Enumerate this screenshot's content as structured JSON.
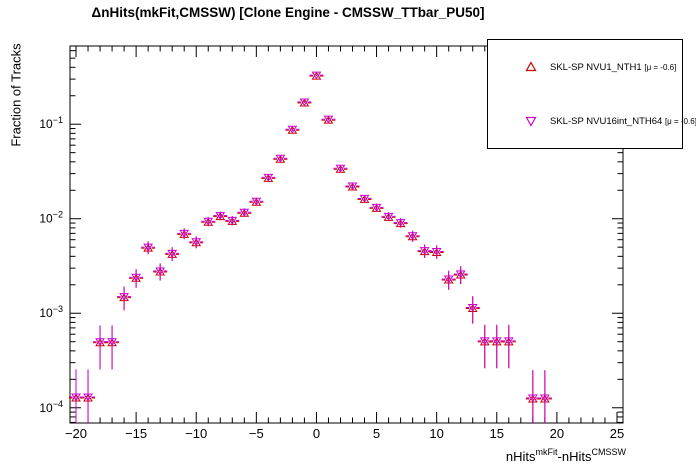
{
  "window": {
    "background": "#ffffff"
  },
  "chart_data": {
    "type": "scatter",
    "title": "ΔnHits(mkFit,CMSSW) [Clone Engine - CMSSW_TTbar_PU50]",
    "ylabel": "Fraction of Tracks",
    "xlabel_parts": [
      {
        "text": "nHits",
        "sup": false
      },
      {
        "text": "mkFit",
        "sup": true
      },
      {
        "text": "-nHits",
        "sup": false
      },
      {
        "text": "CMSSW",
        "sup": true
      }
    ],
    "yscale": "log",
    "grid": false,
    "xlim": [
      -20.5,
      25.5
    ],
    "ylim": [
      6.9e-05,
      0.672
    ],
    "x_major_ticks": [
      -20,
      -15,
      -10,
      -5,
      0,
      5,
      10,
      15,
      20,
      25
    ],
    "x_tick_labels": [
      "−20",
      "−15",
      "−10",
      "−5",
      "0",
      "5",
      "10",
      "15",
      "20",
      "25"
    ],
    "x_minor_tick_step": 1,
    "y_major_ticks": [
      {
        "value": 0.1,
        "label_base": "10",
        "label_exp": "−1"
      },
      {
        "value": 0.01,
        "label_base": "10",
        "label_exp": "−2"
      },
      {
        "value": 0.001,
        "label_base": "10",
        "label_exp": "−3"
      },
      {
        "value": 0.0001,
        "label_base": "10",
        "label_exp": "−4"
      }
    ],
    "legend_position": "top-right",
    "n_total_for_errors": 8300,
    "series": [
      {
        "name": "SKL-SP NVU1_NTH1",
        "mu_label": "[μ = -0.6]",
        "marker": "triangle-up",
        "color": "#cc0000",
        "points": [
          [
            -20,
            0.00013
          ],
          [
            -19,
            0.00013
          ],
          [
            -18,
            0.0005
          ],
          [
            -17,
            0.0005
          ],
          [
            -16,
            0.0015
          ],
          [
            -15,
            0.0024
          ],
          [
            -14,
            0.005
          ],
          [
            -13,
            0.0028
          ],
          [
            -12,
            0.0043
          ],
          [
            -11,
            0.007
          ],
          [
            -10,
            0.0057
          ],
          [
            -9,
            0.0094
          ],
          [
            -8,
            0.0108
          ],
          [
            -7,
            0.0096
          ],
          [
            -6,
            0.0117
          ],
          [
            -5,
            0.0153
          ],
          [
            -4,
            0.0274
          ],
          [
            -3,
            0.0436
          ],
          [
            -2,
            0.0885
          ],
          [
            -1,
            0.172
          ],
          [
            0,
            0.331
          ],
          [
            1,
            0.113
          ],
          [
            2,
            0.0342
          ],
          [
            3,
            0.0222
          ],
          [
            4,
            0.0164
          ],
          [
            5,
            0.0132
          ],
          [
            6,
            0.0106
          ],
          [
            7,
            0.0091
          ],
          [
            8,
            0.0066
          ],
          [
            9,
            0.0046
          ],
          [
            10,
            0.0045
          ],
          [
            11,
            0.0023
          ],
          [
            12,
            0.0026
          ],
          [
            13,
            0.00115
          ],
          [
            14,
            0.00051
          ],
          [
            15,
            0.00051
          ],
          [
            16,
            0.00051
          ],
          [
            18,
            0.000127
          ],
          [
            19,
            0.000127
          ]
        ]
      },
      {
        "name": "SKL-SP NVU16int_NTH64",
        "mu_label": "[μ = -0.6]",
        "marker": "triangle-down",
        "color": "#cc00cc",
        "points": [
          [
            -20,
            0.00013
          ],
          [
            -19,
            0.00013
          ],
          [
            -18,
            0.0005
          ],
          [
            -17,
            0.0005
          ],
          [
            -16,
            0.0015
          ],
          [
            -15,
            0.0024
          ],
          [
            -14,
            0.005
          ],
          [
            -13,
            0.0028
          ],
          [
            -12,
            0.0043
          ],
          [
            -11,
            0.007
          ],
          [
            -10,
            0.0057
          ],
          [
            -9,
            0.0094
          ],
          [
            -8,
            0.0108
          ],
          [
            -7,
            0.0096
          ],
          [
            -6,
            0.0117
          ],
          [
            -5,
            0.0153
          ],
          [
            -4,
            0.0274
          ],
          [
            -3,
            0.0436
          ],
          [
            -2,
            0.0885
          ],
          [
            -1,
            0.172
          ],
          [
            0,
            0.331
          ],
          [
            1,
            0.113
          ],
          [
            2,
            0.0342
          ],
          [
            3,
            0.0222
          ],
          [
            4,
            0.0164
          ],
          [
            5,
            0.0132
          ],
          [
            6,
            0.0106
          ],
          [
            7,
            0.0091
          ],
          [
            8,
            0.0066
          ],
          [
            9,
            0.0046
          ],
          [
            10,
            0.0045
          ],
          [
            11,
            0.0023
          ],
          [
            12,
            0.0026
          ],
          [
            13,
            0.00115
          ],
          [
            14,
            0.00051
          ],
          [
            15,
            0.00051
          ],
          [
            16,
            0.00051
          ],
          [
            18,
            0.000127
          ],
          [
            19,
            0.000127
          ]
        ]
      }
    ]
  }
}
